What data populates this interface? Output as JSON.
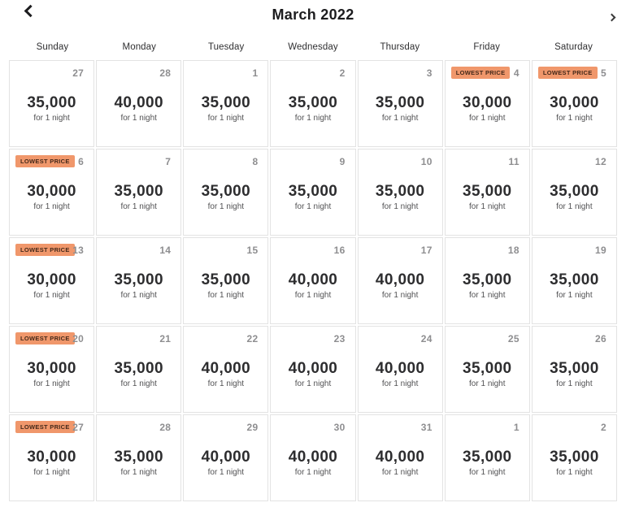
{
  "header": {
    "title": "March 2022"
  },
  "weekdays": [
    "Sunday",
    "Monday",
    "Tuesday",
    "Wednesday",
    "Thursday",
    "Friday",
    "Saturday"
  ],
  "badge_label": "LOWEST PRICE",
  "price_suffix": "for 1 night",
  "colors": {
    "badge_bg": "#F0976B",
    "badge_text": "#44291A",
    "price_text": "#2D2D2F",
    "date_text": "#8E8E90",
    "grid_line": "#E3E3E3"
  },
  "weeks": [
    [
      {
        "date": "27",
        "price": "35,000",
        "lowest": false
      },
      {
        "date": "28",
        "price": "40,000",
        "lowest": false
      },
      {
        "date": "1",
        "price": "35,000",
        "lowest": false
      },
      {
        "date": "2",
        "price": "35,000",
        "lowest": false
      },
      {
        "date": "3",
        "price": "35,000",
        "lowest": false
      },
      {
        "date": "4",
        "price": "30,000",
        "lowest": true
      },
      {
        "date": "5",
        "price": "30,000",
        "lowest": true
      }
    ],
    [
      {
        "date": "6",
        "price": "30,000",
        "lowest": true
      },
      {
        "date": "7",
        "price": "35,000",
        "lowest": false
      },
      {
        "date": "8",
        "price": "35,000",
        "lowest": false
      },
      {
        "date": "9",
        "price": "35,000",
        "lowest": false
      },
      {
        "date": "10",
        "price": "35,000",
        "lowest": false
      },
      {
        "date": "11",
        "price": "35,000",
        "lowest": false
      },
      {
        "date": "12",
        "price": "35,000",
        "lowest": false
      }
    ],
    [
      {
        "date": "13",
        "price": "30,000",
        "lowest": true
      },
      {
        "date": "14",
        "price": "35,000",
        "lowest": false
      },
      {
        "date": "15",
        "price": "35,000",
        "lowest": false
      },
      {
        "date": "16",
        "price": "40,000",
        "lowest": false
      },
      {
        "date": "17",
        "price": "40,000",
        "lowest": false
      },
      {
        "date": "18",
        "price": "35,000",
        "lowest": false
      },
      {
        "date": "19",
        "price": "35,000",
        "lowest": false
      }
    ],
    [
      {
        "date": "20",
        "price": "30,000",
        "lowest": true
      },
      {
        "date": "21",
        "price": "35,000",
        "lowest": false
      },
      {
        "date": "22",
        "price": "40,000",
        "lowest": false
      },
      {
        "date": "23",
        "price": "40,000",
        "lowest": false
      },
      {
        "date": "24",
        "price": "40,000",
        "lowest": false
      },
      {
        "date": "25",
        "price": "35,000",
        "lowest": false
      },
      {
        "date": "26",
        "price": "35,000",
        "lowest": false
      }
    ],
    [
      {
        "date": "27",
        "price": "30,000",
        "lowest": true
      },
      {
        "date": "28",
        "price": "35,000",
        "lowest": false
      },
      {
        "date": "29",
        "price": "40,000",
        "lowest": false
      },
      {
        "date": "30",
        "price": "40,000",
        "lowest": false
      },
      {
        "date": "31",
        "price": "40,000",
        "lowest": false
      },
      {
        "date": "1",
        "price": "35,000",
        "lowest": false
      },
      {
        "date": "2",
        "price": "35,000",
        "lowest": false
      }
    ]
  ]
}
